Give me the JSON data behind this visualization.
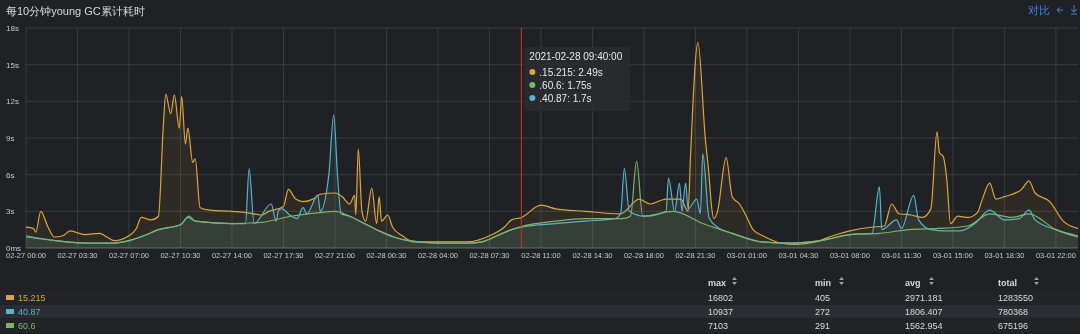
{
  "chart_data": {
    "type": "area",
    "title": "每10分钟young GC累计耗时",
    "xlim": [
      "2021-02-27T00:00",
      "2021-03-01T23:30"
    ],
    "xticks": [
      {
        "value": "2021-02-27T00:00",
        "label": "02-27 00:00"
      },
      {
        "value": "2021-02-27T03:30",
        "label": "02-27 03:30"
      },
      {
        "value": "2021-02-27T07:00",
        "label": "02-27 07:00"
      },
      {
        "value": "2021-02-27T10:30",
        "label": "02-27 10:30"
      },
      {
        "value": "2021-02-27T14:00",
        "label": "02-27 14:00"
      },
      {
        "value": "2021-02-27T17:30",
        "label": "02-27 17:30"
      },
      {
        "value": "2021-02-27T21:00",
        "label": "02-27 21:00"
      },
      {
        "value": "2021-02-28T00:30",
        "label": "02-28 00:30"
      },
      {
        "value": "2021-02-28T04:00",
        "label": "02-28 04:00"
      },
      {
        "value": "2021-02-28T07:30",
        "label": "02-28 07:30"
      },
      {
        "value": "2021-02-28T11:00",
        "label": "02-28 11:00"
      },
      {
        "value": "2021-02-28T14:30",
        "label": "02-28 14:30"
      },
      {
        "value": "2021-02-28T18:00",
        "label": "02-28 18:00"
      },
      {
        "value": "2021-02-28T21:30",
        "label": "02-28 21:30"
      },
      {
        "value": "2021-03-01T01:00",
        "label": "03-01 01:00"
      },
      {
        "value": "2021-03-01T04:30",
        "label": "03-01 04:30"
      },
      {
        "value": "2021-03-01T08:00",
        "label": "03-01 08:00"
      },
      {
        "value": "2021-03-01T11:30",
        "label": "03-01 11:30"
      },
      {
        "value": "2021-03-01T15:00",
        "label": "03-01 15:00"
      },
      {
        "value": "2021-03-01T18:30",
        "label": "03-01 18:30"
      },
      {
        "value": "2021-03-01T22:00",
        "label": "03-01 22:00"
      }
    ],
    "ylim": [
      0,
      18
    ],
    "yticks": [
      {
        "value": 0,
        "label": "0ms"
      },
      {
        "value": 3,
        "label": "3s"
      },
      {
        "value": 6,
        "label": "6s"
      },
      {
        "value": 9,
        "label": "9s"
      },
      {
        "value": 12,
        "label": "12s"
      },
      {
        "value": 15,
        "label": "15s"
      },
      {
        "value": 18,
        "label": "18s"
      }
    ],
    "grid": true,
    "legend": "bottom",
    "ref_lines": [
      {
        "axis": "x",
        "value": "2021-02-28T09:40",
        "color": "#c0392b"
      }
    ],
    "series": [
      {
        "name": "15.215",
        "color": "#d9a73e",
        "x": [
          "2021-02-27T00:00",
          "2021-02-27T00:30",
          "2021-02-27T00:40",
          "2021-02-27T01:00",
          "2021-02-27T01:30",
          "2021-02-27T01:55",
          "2021-02-27T02:30",
          "2021-02-27T03:00",
          "2021-02-27T04:00",
          "2021-02-27T05:00",
          "2021-02-27T05:30",
          "2021-02-27T06:00",
          "2021-02-27T07:00",
          "2021-02-27T07:30",
          "2021-02-27T07:50",
          "2021-02-27T08:30",
          "2021-02-27T09:00",
          "2021-02-27T09:20",
          "2021-02-27T09:30",
          "2021-02-27T09:50",
          "2021-02-27T10:05",
          "2021-02-27T10:25",
          "2021-02-27T10:35",
          "2021-02-27T10:50",
          "2021-02-27T11:00",
          "2021-02-27T11:20",
          "2021-02-27T11:30",
          "2021-02-27T11:50",
          "2021-02-27T12:30",
          "2021-02-27T14:00",
          "2021-02-27T15:00",
          "2021-02-27T16:00",
          "2021-02-27T16:30",
          "2021-02-27T17:30",
          "2021-02-27T17:50",
          "2021-02-27T18:20",
          "2021-02-27T18:50",
          "2021-02-27T19:30",
          "2021-02-27T20:00",
          "2021-02-27T21:00",
          "2021-02-27T21:30",
          "2021-02-27T22:00",
          "2021-02-27T22:20",
          "2021-02-27T22:25",
          "2021-02-27T22:35",
          "2021-02-27T22:50",
          "2021-02-27T23:05",
          "2021-02-27T23:30",
          "2021-02-27T23:50",
          "2021-02-28T00:00",
          "2021-02-28T00:10",
          "2021-02-28T00:35",
          "2021-02-28T00:55",
          "2021-02-28T01:35",
          "2021-02-28T02:20",
          "2021-02-28T04:00",
          "2021-02-28T06:00",
          "2021-02-28T07:30",
          "2021-02-28T08:30",
          "2021-02-28T09:00",
          "2021-02-28T09:40",
          "2021-02-28T11:00",
          "2021-02-28T12:00",
          "2021-02-28T14:00",
          "2021-02-28T16:25",
          "2021-02-28T17:40",
          "2021-02-28T18:25",
          "2021-02-28T19:30",
          "2021-02-28T20:30",
          "2021-02-28T21:00",
          "2021-02-28T21:10",
          "2021-02-28T21:40",
          "2021-02-28T22:10",
          "2021-02-28T22:25",
          "2021-02-28T22:35",
          "2021-02-28T22:45",
          "2021-02-28T23:00",
          "2021-02-28T23:35",
          "2021-03-01T00:00",
          "2021-03-01T00:30",
          "2021-03-01T01:00",
          "2021-03-01T01:25",
          "2021-03-01T02:05",
          "2021-03-01T03:20",
          "2021-03-01T04:20",
          "2021-03-01T05:40",
          "2021-03-01T06:50",
          "2021-03-01T08:00",
          "2021-03-01T09:25",
          "2021-03-01T10:20",
          "2021-03-01T10:50",
          "2021-03-01T11:20",
          "2021-03-01T12:10",
          "2021-03-01T12:55",
          "2021-03-01T13:30",
          "2021-03-01T13:55",
          "2021-03-01T14:05",
          "2021-03-01T14:20",
          "2021-03-01T14:35",
          "2021-03-01T14:50",
          "2021-03-01T15:20",
          "2021-03-01T16:00",
          "2021-03-01T16:40",
          "2021-03-01T17:00",
          "2021-03-01T17:30",
          "2021-03-01T17:55",
          "2021-03-01T18:30",
          "2021-03-01T19:40",
          "2021-03-01T20:10",
          "2021-03-01T20:35",
          "2021-03-01T21:35",
          "2021-03-01T22:30",
          "2021-03-01T23:30"
        ],
        "values": [
          1.7,
          1.6,
          1.3,
          3.0,
          1.7,
          0.9,
          1.0,
          1.4,
          1.1,
          1.2,
          0.9,
          0.6,
          1.0,
          1.6,
          2.5,
          2.3,
          2.6,
          10.0,
          12.6,
          11.0,
          12.5,
          9.8,
          12.4,
          8.5,
          9.8,
          7.0,
          7.3,
          3.3,
          3.1,
          3.0,
          2.9,
          2.7,
          3.0,
          3.4,
          4.8,
          4.0,
          3.8,
          4.0,
          4.4,
          4.5,
          4.2,
          3.6,
          4.3,
          2.7,
          8.1,
          3.0,
          2.2,
          4.9,
          2.0,
          4.2,
          2.2,
          2.7,
          1.7,
          1.0,
          0.5,
          0.5,
          0.5,
          1.0,
          1.7,
          2.3,
          2.49,
          3.5,
          3.2,
          3.0,
          2.8,
          4.0,
          3.6,
          4.0,
          4.0,
          3.0,
          7.6,
          16.8,
          9.0,
          6.0,
          3.5,
          2.4,
          3.0,
          7.4,
          4.2,
          3.6,
          2.5,
          1.5,
          1.0,
          0.4,
          0.3,
          0.5,
          1.0,
          1.4,
          1.7,
          1.8,
          3.6,
          2.8,
          2.7,
          2.5,
          3.2,
          9.5,
          7.8,
          7.5,
          5.6,
          2.0,
          2.6,
          2.5,
          2.9,
          4.0,
          5.3,
          4.0,
          4.2,
          4.8,
          5.5,
          4.5,
          3.8,
          2.2,
          1.6
        ]
      },
      {
        "name": "40.87",
        "color": "#5ab4c8",
        "x": [
          "2021-02-27T00:00",
          "2021-02-27T02:00",
          "2021-02-27T04:00",
          "2021-02-27T06:00",
          "2021-02-27T07:00",
          "2021-02-27T08:00",
          "2021-02-27T09:00",
          "2021-02-27T10:30",
          "2021-02-27T11:05",
          "2021-02-27T11:30",
          "2021-02-27T14:00",
          "2021-02-27T14:55",
          "2021-02-27T15:10",
          "2021-02-27T15:30",
          "2021-02-27T16:40",
          "2021-02-27T17:00",
          "2021-02-27T17:10",
          "2021-02-27T17:25",
          "2021-02-27T17:55",
          "2021-02-27T18:25",
          "2021-02-27T18:50",
          "2021-02-27T19:05",
          "2021-02-27T19:50",
          "2021-02-27T20:00",
          "2021-02-27T20:35",
          "2021-02-27T20:55",
          "2021-02-27T21:10",
          "2021-02-27T21:25",
          "2021-02-27T22:00",
          "2021-02-27T23:00",
          "2021-02-28T00:00",
          "2021-02-28T01:00",
          "2021-02-28T02:00",
          "2021-02-28T04:00",
          "2021-02-28T06:00",
          "2021-02-28T07:00",
          "2021-02-28T08:00",
          "2021-02-28T09:00",
          "2021-02-28T09:40",
          "2021-02-28T12:00",
          "2021-02-28T14:00",
          "2021-02-28T16:00",
          "2021-02-28T16:25",
          "2021-02-28T16:40",
          "2021-02-28T17:00",
          "2021-02-28T18:00",
          "2021-02-28T19:30",
          "2021-02-28T19:40",
          "2021-02-28T20:05",
          "2021-02-28T20:25",
          "2021-02-28T20:35",
          "2021-02-28T20:50",
          "2021-02-28T21:00",
          "2021-02-28T21:35",
          "2021-02-28T21:50",
          "2021-02-28T22:00",
          "2021-02-28T22:25",
          "2021-02-28T23:00",
          "2021-03-01T00:00",
          "2021-03-01T01:00",
          "2021-03-01T02:00",
          "2021-03-01T04:00",
          "2021-03-01T06:00",
          "2021-03-01T08:00",
          "2021-03-01T09:30",
          "2021-03-01T10:00",
          "2021-03-01T10:10",
          "2021-03-01T11:10",
          "2021-03-01T11:30",
          "2021-03-01T12:20",
          "2021-03-01T12:40",
          "2021-03-01T13:30",
          "2021-03-01T14:30",
          "2021-03-01T15:30",
          "2021-03-01T16:30",
          "2021-03-01T17:30",
          "2021-03-01T18:30",
          "2021-03-01T19:30",
          "2021-03-01T20:10",
          "2021-03-01T20:35",
          "2021-03-01T22:00",
          "2021-03-01T23:30"
        ],
        "values": [
          1.0,
          0.6,
          0.4,
          0.4,
          0.6,
          1.0,
          1.5,
          1.9,
          2.6,
          2.2,
          2.0,
          2.0,
          6.5,
          2.0,
          3.6,
          2.2,
          3.1,
          3.2,
          2.7,
          2.4,
          3.3,
          2.8,
          4.3,
          3.0,
          6.0,
          10.9,
          6.0,
          2.8,
          2.6,
          2.0,
          1.4,
          0.9,
          0.6,
          0.4,
          0.4,
          0.5,
          1.0,
          1.5,
          1.7,
          2.0,
          2.2,
          2.4,
          2.8,
          6.5,
          3.0,
          2.6,
          3.0,
          5.7,
          3.0,
          5.3,
          3.0,
          5.3,
          3.2,
          4.0,
          2.8,
          7.7,
          2.5,
          1.7,
          1.2,
          0.8,
          0.5,
          0.4,
          0.6,
          1.1,
          1.2,
          5.0,
          1.5,
          2.3,
          1.6,
          4.3,
          2.3,
          1.5,
          1.4,
          1.4,
          2.0,
          3.1,
          2.3,
          2.4,
          3.1,
          2.3,
          1.5,
          1.0
        ]
      },
      {
        "name": "60.6",
        "color": "#7eb26d",
        "x": [
          "2021-02-27T00:00",
          "2021-02-27T02:00",
          "2021-02-27T04:00",
          "2021-02-27T06:00",
          "2021-02-27T07:00",
          "2021-02-27T08:00",
          "2021-02-27T09:00",
          "2021-02-27T10:30",
          "2021-02-27T11:00",
          "2021-02-27T11:30",
          "2021-02-27T14:00",
          "2021-02-27T16:00",
          "2021-02-27T18:00",
          "2021-02-27T20:00",
          "2021-02-27T21:00",
          "2021-02-27T22:00",
          "2021-02-27T23:00",
          "2021-02-28T00:00",
          "2021-02-28T01:00",
          "2021-02-28T02:00",
          "2021-02-28T04:00",
          "2021-02-28T06:00",
          "2021-02-28T07:00",
          "2021-02-28T08:00",
          "2021-02-28T09:00",
          "2021-02-28T09:40",
          "2021-02-28T12:00",
          "2021-02-28T14:00",
          "2021-02-28T16:30",
          "2021-02-28T17:05",
          "2021-02-28T17:30",
          "2021-02-28T17:55",
          "2021-02-28T20:00",
          "2021-02-28T22:00",
          "2021-03-01T00:00",
          "2021-03-01T02:00",
          "2021-03-01T04:00",
          "2021-03-01T06:00",
          "2021-03-01T08:00",
          "2021-03-01T10:00",
          "2021-03-01T12:00",
          "2021-03-01T14:00",
          "2021-03-01T16:00",
          "2021-03-01T17:30",
          "2021-03-01T19:00",
          "2021-03-01T20:10",
          "2021-03-01T22:00",
          "2021-03-01T23:30"
        ],
        "values": [
          0.9,
          0.6,
          0.4,
          0.4,
          0.6,
          1.0,
          1.5,
          1.9,
          2.5,
          2.2,
          2.0,
          2.1,
          2.6,
          2.9,
          3.0,
          2.6,
          2.0,
          1.4,
          0.9,
          0.6,
          0.4,
          0.4,
          0.5,
          1.0,
          1.5,
          1.75,
          2.2,
          2.4,
          2.4,
          2.6,
          7.1,
          2.6,
          3.0,
          2.0,
          1.2,
          0.5,
          0.4,
          0.6,
          1.1,
          1.2,
          1.5,
          1.6,
          1.8,
          2.8,
          2.5,
          2.8,
          1.5,
          0.9
        ]
      }
    ],
    "annotations": [
      "2021-02-28 09:40:00",
      ".15.215:  2.49s",
      ".60.6:  1.75s",
      ".40.87:  1.7s",
      "对比",
      "max",
      "min",
      "avg",
      "total",
      "16802",
      "405",
      "2971.181",
      "1283550",
      "10937",
      "272",
      "1806.407",
      "780368",
      "7103",
      "291",
      "1562.954",
      "675196"
    ]
  }
}
